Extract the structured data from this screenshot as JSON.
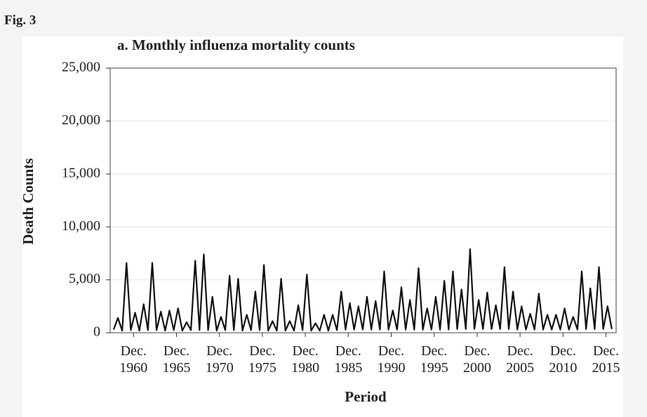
{
  "figure_label": "Fig. 3",
  "chart_data": {
    "type": "line",
    "title": "a. Monthly influenza mortality counts",
    "xlabel": "Period",
    "ylabel": "Death Counts",
    "xlim": [
      1958.2,
      2017.1
    ],
    "ylim": [
      0,
      25000
    ],
    "xticks": [
      {
        "value": 1960.92,
        "label": "Dec. 1960"
      },
      {
        "value": 1965.92,
        "label": "Dec. 1965"
      },
      {
        "value": 1970.92,
        "label": "Dec. 1970"
      },
      {
        "value": 1975.92,
        "label": "Dec. 1975"
      },
      {
        "value": 1980.92,
        "label": "Dec. 1980"
      },
      {
        "value": 1985.92,
        "label": "Dec. 1985"
      },
      {
        "value": 1990.92,
        "label": "Dec. 1990"
      },
      {
        "value": 1995.92,
        "label": "Dec. 1995"
      },
      {
        "value": 2000.92,
        "label": "Dec. 2000"
      },
      {
        "value": 2005.92,
        "label": "Dec. 2005"
      },
      {
        "value": 2010.92,
        "label": "Dec. 2010"
      },
      {
        "value": 2015.92,
        "label": "Dec. 2015"
      }
    ],
    "yticks": [
      0,
      {
        "value": 5000,
        "label": "5,000"
      },
      {
        "value": 10000,
        "label": "10,000"
      },
      {
        "value": 15000,
        "label": "15,000"
      },
      {
        "value": 20000,
        "label": "20,000"
      },
      {
        "value": 25000,
        "label": "25,000"
      }
    ],
    "grid": true,
    "series": [
      {
        "color": "#111111",
        "x": [
          1958.6,
          1959.1,
          1959.6,
          1960.1,
          1960.6,
          1961.1,
          1961.6,
          1962.1,
          1962.6,
          1963.1,
          1963.6,
          1964.1,
          1964.6,
          1965.1,
          1965.6,
          1966.1,
          1966.6,
          1967.1,
          1967.6,
          1968.1,
          1968.6,
          1969.1,
          1969.6,
          1970.1,
          1970.6,
          1971.1,
          1971.6,
          1972.1,
          1972.6,
          1973.1,
          1973.6,
          1974.1,
          1974.6,
          1975.1,
          1975.6,
          1976.1,
          1976.6,
          1977.1,
          1977.6,
          1978.1,
          1978.6,
          1979.1,
          1979.6,
          1980.1,
          1980.6,
          1981.1,
          1981.6,
          1982.1,
          1982.6,
          1983.1,
          1983.6,
          1984.1,
          1984.6,
          1985.1,
          1985.6,
          1986.1,
          1986.6,
          1987.1,
          1987.6,
          1988.1,
          1988.6,
          1989.1,
          1989.6,
          1990.1,
          1990.6,
          1991.1,
          1991.6,
          1992.1,
          1992.6,
          1993.1,
          1993.6,
          1994.1,
          1994.6,
          1995.1,
          1995.6,
          1996.1,
          1996.6,
          1997.1,
          1997.6,
          1998.1,
          1998.6,
          1999.1,
          1999.6,
          2000.1,
          2000.6,
          2001.1,
          2001.6,
          2002.1,
          2002.6,
          2003.1,
          2003.6,
          2004.1,
          2004.6,
          2005.1,
          2005.6,
          2006.1,
          2006.6,
          2007.1,
          2007.6,
          2008.1,
          2008.6,
          2009.1,
          2009.6,
          2010.1,
          2010.6,
          2011.1,
          2011.6,
          2012.1,
          2012.6,
          2013.1,
          2013.6,
          2014.1,
          2014.6,
          2015.1,
          2015.6,
          2016.1,
          2016.6
        ],
        "values": [
          300,
          1400,
          200,
          6600,
          250,
          1900,
          200,
          2700,
          250,
          6600,
          250,
          2000,
          200,
          2100,
          250,
          2300,
          200,
          1000,
          250,
          6800,
          250,
          7400,
          250,
          3400,
          200,
          1500,
          250,
          5400,
          250,
          5100,
          200,
          1700,
          250,
          3900,
          250,
          6400,
          200,
          1100,
          200,
          5100,
          200,
          1100,
          200,
          2600,
          250,
          5500,
          200,
          900,
          200,
          1700,
          200,
          1700,
          250,
          3900,
          300,
          2800,
          300,
          2500,
          300,
          3400,
          300,
          3000,
          300,
          5800,
          300,
          2100,
          300,
          4300,
          300,
          3100,
          300,
          6100,
          300,
          2300,
          300,
          3400,
          300,
          4900,
          300,
          5800,
          350,
          4100,
          350,
          7900,
          350,
          3100,
          350,
          3800,
          350,
          2600,
          350,
          6200,
          350,
          3900,
          300,
          2500,
          300,
          1800,
          300,
          3700,
          300,
          1700,
          300,
          1700,
          300,
          2300,
          300,
          1500,
          300,
          5800,
          350,
          4200,
          350,
          6200,
          350,
          2500,
          350
        ]
      }
    ]
  }
}
